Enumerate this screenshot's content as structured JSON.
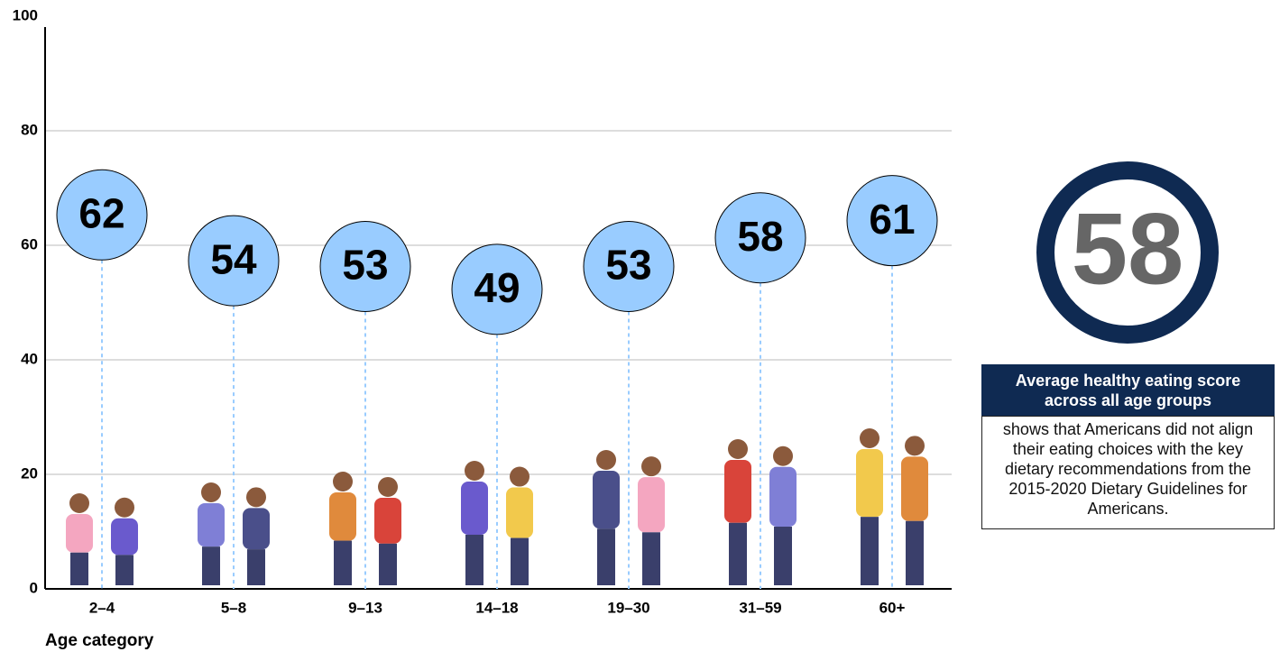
{
  "chart_data": {
    "type": "lollipop",
    "x_label": "Age category",
    "categories": [
      "2–4",
      "5–8",
      "9–13",
      "14–18",
      "19–30",
      "31–59",
      "60+"
    ],
    "values": [
      62,
      54,
      53,
      49,
      53,
      58,
      61
    ],
    "color": "#99ccff",
    "ylim": [
      0,
      100
    ],
    "yticks": [
      0,
      20,
      40,
      60,
      80,
      100
    ],
    "grid": true
  },
  "summary": {
    "value": 58,
    "title": "Average healthy eating score across all age groups",
    "text": "shows that Americans did not align their eating choices with the key dietary recommendations from the 2015-2020 Dietary Guidelines for Americans."
  }
}
